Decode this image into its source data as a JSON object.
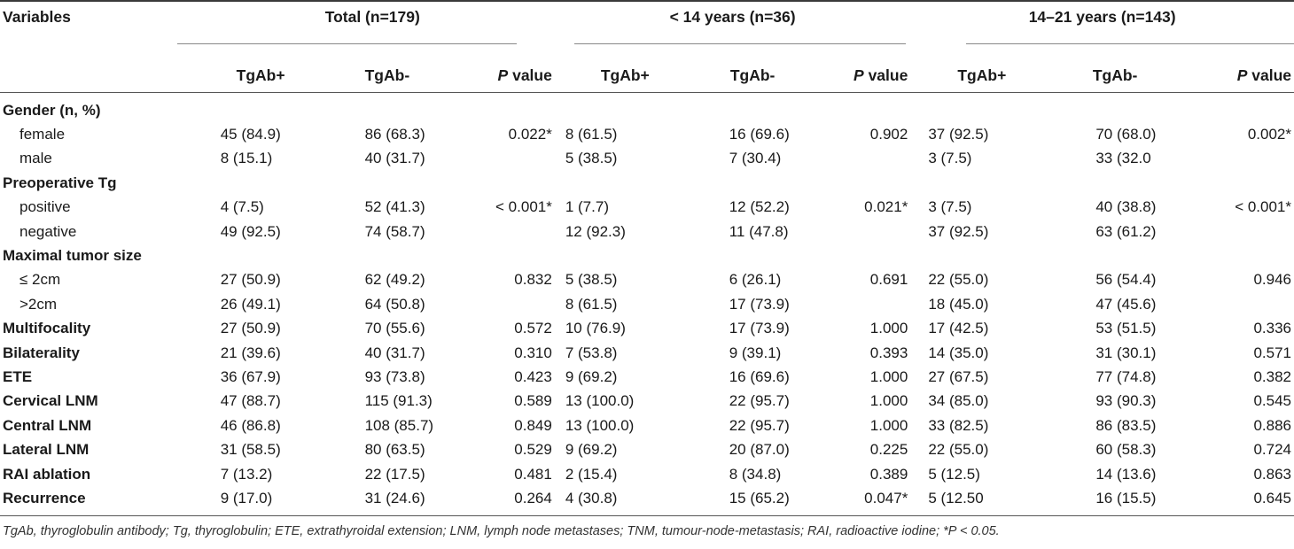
{
  "header": {
    "variables_label": "Variables",
    "groups": [
      {
        "label": "Total (n=179)"
      },
      {
        "label": "< 14 years (n=36)"
      },
      {
        "label": "14–21 years (n=143)"
      }
    ],
    "sub": {
      "pos": "TgAb+",
      "neg": "TgAb-",
      "p_italic": "P",
      "p_rest": " value"
    }
  },
  "rows": [
    {
      "label": "Gender (n, %)",
      "kind": "cat",
      "cells": [
        "",
        "",
        "",
        "",
        "",
        "",
        "",
        "",
        ""
      ]
    },
    {
      "label": "female",
      "kind": "sub",
      "cells": [
        "45 (84.9)",
        "86 (68.3)",
        "0.022*",
        "8 (61.5)",
        "16 (69.6)",
        "0.902",
        "37 (92.5)",
        "70 (68.0)",
        "0.002*"
      ]
    },
    {
      "label": "male",
      "kind": "sub",
      "cells": [
        "8 (15.1)",
        "40 (31.7)",
        "",
        "5 (38.5)",
        "7 (30.4)",
        "",
        "3 (7.5)",
        "33 (32.0",
        ""
      ]
    },
    {
      "label": "Preoperative Tg",
      "kind": "cat",
      "cells": [
        "",
        "",
        "",
        "",
        "",
        "",
        "",
        "",
        ""
      ]
    },
    {
      "label": "positive",
      "kind": "sub",
      "cells": [
        "4 (7.5)",
        "52 (41.3)",
        "< 0.001*",
        "1 (7.7)",
        "12 (52.2)",
        "0.021*",
        "3 (7.5)",
        "40 (38.8)",
        "< 0.001*"
      ]
    },
    {
      "label": "negative",
      "kind": "sub",
      "cells": [
        "49 (92.5)",
        "74 (58.7)",
        "",
        "12 (92.3)",
        "11 (47.8)",
        "",
        "37 (92.5)",
        "63 (61.2)",
        ""
      ]
    },
    {
      "label": "Maximal tumor size",
      "kind": "cat",
      "cells": [
        "",
        "",
        "",
        "",
        "",
        "",
        "",
        "",
        ""
      ]
    },
    {
      "label": "≤ 2cm",
      "kind": "sub",
      "cells": [
        "27 (50.9)",
        "62 (49.2)",
        "0.832",
        "5 (38.5)",
        "6 (26.1)",
        "0.691",
        "22 (55.0)",
        "56 (54.4)",
        "0.946"
      ]
    },
    {
      "label": ">2cm",
      "kind": "sub",
      "cells": [
        "26 (49.1)",
        "64 (50.8)",
        "",
        "8 (61.5)",
        "17 (73.9)",
        "",
        "18 (45.0)",
        "47 (45.6)",
        ""
      ]
    },
    {
      "label": "Multifocality",
      "kind": "cat",
      "cells": [
        "27 (50.9)",
        "70 (55.6)",
        "0.572",
        "10 (76.9)",
        "17 (73.9)",
        "1.000",
        "17 (42.5)",
        "53 (51.5)",
        "0.336"
      ]
    },
    {
      "label": "Bilaterality",
      "kind": "cat",
      "cells": [
        "21 (39.6)",
        "40 (31.7)",
        "0.310",
        "7 (53.8)",
        "9 (39.1)",
        "0.393",
        "14 (35.0)",
        "31 (30.1)",
        "0.571"
      ]
    },
    {
      "label": "ETE",
      "kind": "cat",
      "cells": [
        "36 (67.9)",
        "93 (73.8)",
        "0.423",
        "9 (69.2)",
        "16 (69.6)",
        "1.000",
        "27 (67.5)",
        "77 (74.8)",
        "0.382"
      ]
    },
    {
      "label": "Cervical LNM",
      "kind": "cat",
      "cells": [
        "47 (88.7)",
        "115 (91.3)",
        "0.589",
        "13 (100.0)",
        "22 (95.7)",
        "1.000",
        "34 (85.0)",
        "93 (90.3)",
        "0.545"
      ]
    },
    {
      "label": "Central LNM",
      "kind": "cat",
      "cells": [
        "46 (86.8)",
        "108 (85.7)",
        "0.849",
        "13 (100.0)",
        "22 (95.7)",
        "1.000",
        "33 (82.5)",
        "86 (83.5)",
        "0.886"
      ]
    },
    {
      "label": "Lateral LNM",
      "kind": "cat",
      "cells": [
        "31 (58.5)",
        "80 (63.5)",
        "0.529",
        "9 (69.2)",
        "20 (87.0)",
        "0.225",
        "22 (55.0)",
        "60 (58.3)",
        "0.724"
      ]
    },
    {
      "label": "RAI ablation",
      "kind": "cat",
      "cells": [
        "7 (13.2)",
        "22 (17.5)",
        "0.481",
        "2 (15.4)",
        "8 (34.8)",
        "0.389",
        "5 (12.5)",
        "14 (13.6)",
        "0.863"
      ]
    },
    {
      "label": "Recurrence",
      "kind": "cat",
      "cells": [
        "9 (17.0)",
        "31 (24.6)",
        "0.264",
        "4 (30.8)",
        "15 (65.2)",
        "0.047*",
        "5 (12.50",
        "16 (15.5)",
        "0.645"
      ]
    }
  ],
  "footnote": "TgAb, thyroglobulin antibody; Tg, thyroglobulin; ETE, extrathyroidal extension; LNM, lymph node metastases; TNM, tumour-node-metastasis; RAI, radioactive iodine; *P < 0.05."
}
